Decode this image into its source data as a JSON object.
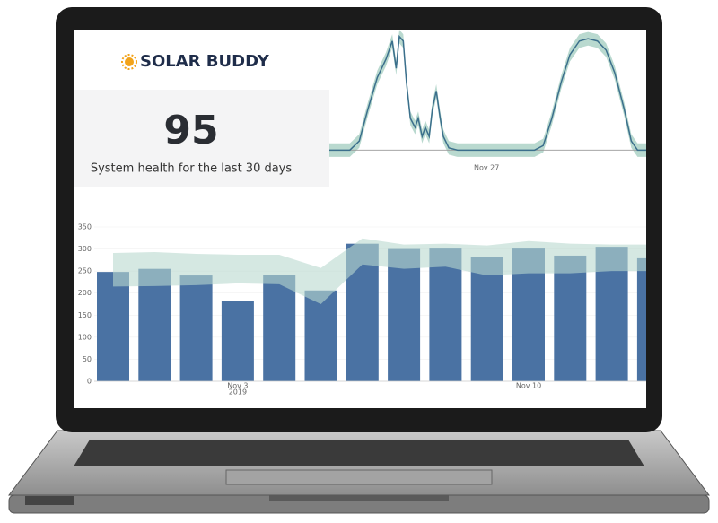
{
  "header": {
    "logo": "SOLAR BUDDY"
  },
  "health": {
    "score": 95,
    "label": "System health for the last 30 days"
  },
  "chart_data": [
    {
      "type": "line",
      "color": "#3b6f8c",
      "band_color": "#a8cfc3",
      "x": [
        0.0,
        2.6,
        3.8,
        4.9,
        6.1,
        7.2,
        8.0,
        8.5,
        8.9,
        9.4,
        9.8,
        10.3,
        10.9,
        11.3,
        11.8,
        12.2,
        12.7,
        13.1,
        13.6,
        14.1,
        14.5,
        15.2,
        16.3,
        19.8,
        26.1,
        27.2,
        28.3,
        29.5,
        30.6,
        31.8,
        32.9,
        34.1,
        35.2,
        36.3,
        37.5,
        38.4,
        39.2,
        40.3
      ],
      "values": [
        0,
        0,
        8,
        36,
        64,
        80,
        96,
        72,
        100,
        96,
        60,
        28,
        20,
        28,
        12,
        20,
        12,
        36,
        52,
        28,
        12,
        2,
        0,
        0,
        0,
        4,
        28,
        60,
        84,
        96,
        98,
        96,
        88,
        68,
        36,
        8,
        0,
        0
      ],
      "band_upper": [
        6,
        6,
        14,
        42,
        70,
        86,
        102,
        78,
        106,
        102,
        66,
        34,
        26,
        34,
        18,
        26,
        18,
        42,
        58,
        34,
        18,
        8,
        6,
        6,
        6,
        10,
        34,
        66,
        90,
        102,
        104,
        102,
        94,
        74,
        42,
        14,
        6,
        6
      ],
      "band_lower": [
        -6,
        -6,
        2,
        30,
        58,
        74,
        90,
        66,
        94,
        90,
        54,
        22,
        14,
        22,
        6,
        14,
        6,
        30,
        46,
        22,
        6,
        -4,
        -6,
        -6,
        -6,
        -2,
        22,
        54,
        78,
        90,
        92,
        90,
        82,
        62,
        30,
        2,
        -6,
        -6
      ],
      "xlim": [
        0,
        40.3
      ],
      "ylim": [
        -10,
        110
      ],
      "xticks": [
        {
          "value": 20,
          "label": "Nov 27"
        }
      ]
    },
    {
      "type": "bar",
      "color": "#4a72a3",
      "band_color": "#b9d8ce",
      "categories": [
        null,
        null,
        null,
        "Nov 3",
        null,
        null,
        null,
        null,
        null,
        null,
        "Nov 10",
        null,
        null,
        null
      ],
      "year_label": "2019",
      "values": [
        248,
        255,
        240,
        183,
        242,
        206,
        312,
        300,
        301,
        281,
        301,
        285,
        305,
        279
      ],
      "band_upper": [
        291,
        293,
        289,
        287,
        287,
        257,
        324,
        310,
        312,
        308,
        318,
        312,
        310,
        310
      ],
      "band_lower": [
        215,
        216,
        218,
        222,
        220,
        175,
        265,
        255,
        260,
        240,
        245,
        245,
        250,
        250
      ],
      "ylim": [
        0,
        350
      ],
      "yticks": [
        0,
        50,
        100,
        150,
        200,
        250,
        300,
        350
      ]
    }
  ]
}
